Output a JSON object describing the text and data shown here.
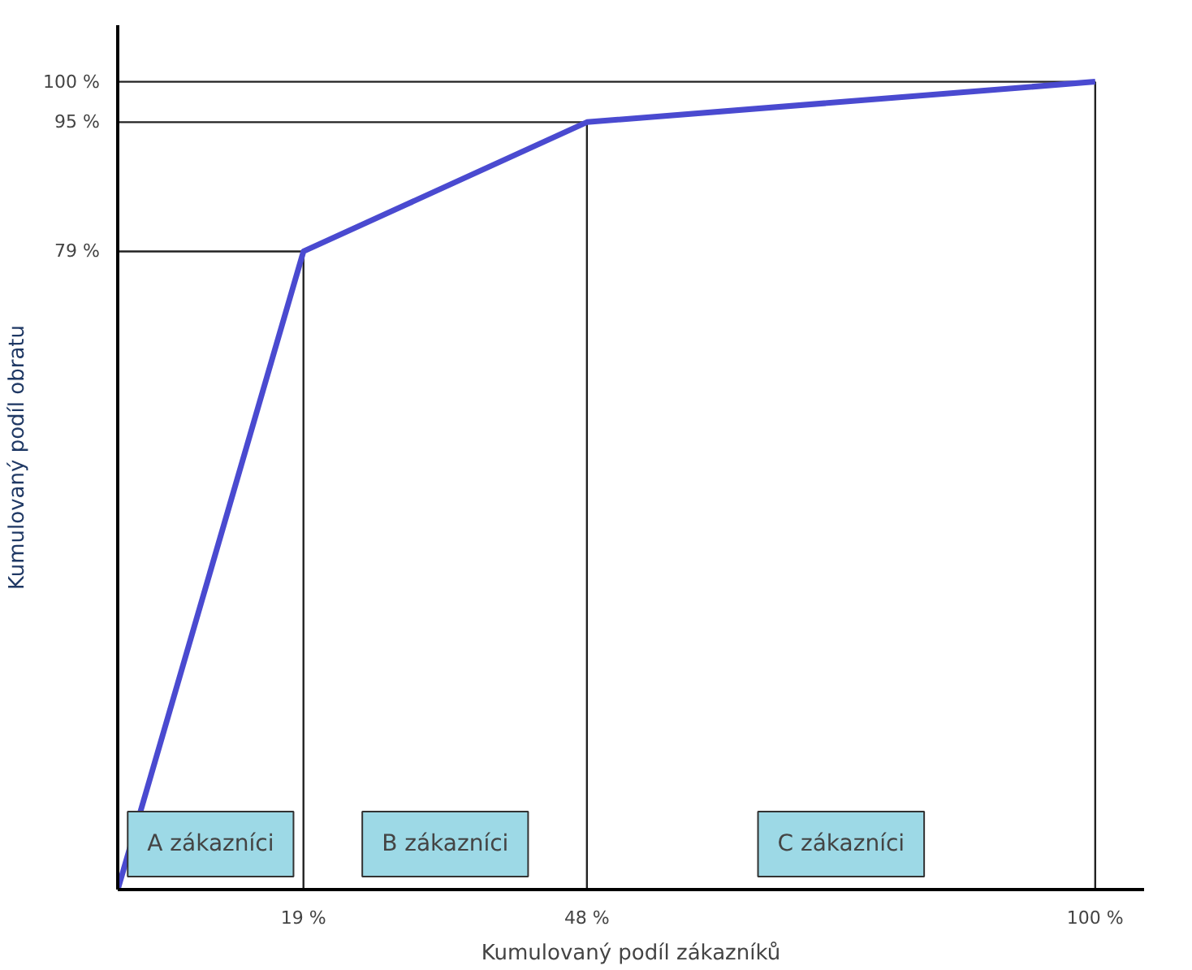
{
  "chart_data": {
    "type": "line",
    "xlabel": "Kumulovaný podíl zákazníků",
    "ylabel": "Kumulovaný podíl obratu",
    "x": [
      0,
      19,
      48,
      100
    ],
    "series": [
      {
        "color": "#4a4ad0",
        "values": [
          0,
          79,
          95,
          100
        ]
      }
    ],
    "xlim": [
      0,
      105
    ],
    "ylim": [
      0,
      107
    ],
    "xticks": [
      {
        "value": 19,
        "label": "19 %"
      },
      {
        "value": 48,
        "label": "48 %"
      },
      {
        "value": 100,
        "label": "100 %"
      }
    ],
    "yticks": [
      {
        "value": 79,
        "label": "79 %"
      },
      {
        "value": 95,
        "label": "95 %"
      },
      {
        "value": 100,
        "label": "100 %"
      }
    ],
    "ref_lines": [
      {
        "axis": "x",
        "value": 19
      },
      {
        "axis": "x",
        "value": 48
      },
      {
        "axis": "x",
        "value": 100
      },
      {
        "axis": "y",
        "value": 79
      },
      {
        "axis": "y",
        "value": 95
      },
      {
        "axis": "y",
        "value": 100
      }
    ],
    "annotations": [
      "A zákazníci",
      "B zákazníci",
      "C zákazníci"
    ],
    "grid": false,
    "marker": "none",
    "line_style": "solid"
  }
}
